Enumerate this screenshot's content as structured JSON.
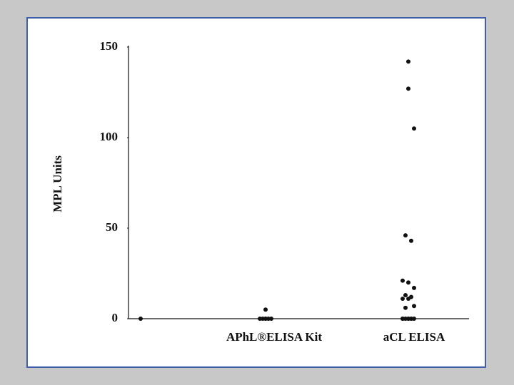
{
  "chart_data": {
    "type": "strip",
    "y_label": "MPL Units",
    "categories": [
      null,
      "APhL®ELISA Kit",
      "aCL ELISA"
    ],
    "values": [
      [
        0
      ],
      [
        0,
        5,
        0,
        0,
        0,
        0,
        0
      ],
      [
        142,
        127,
        105,
        46,
        43,
        21,
        20,
        17,
        13,
        12,
        11,
        11,
        7,
        6,
        0,
        0,
        0,
        0,
        0,
        0,
        0,
        0
      ]
    ],
    "color": "#111111",
    "ylim": [
      0,
      150
    ],
    "yticks": [
      0,
      50,
      100,
      150
    ]
  }
}
